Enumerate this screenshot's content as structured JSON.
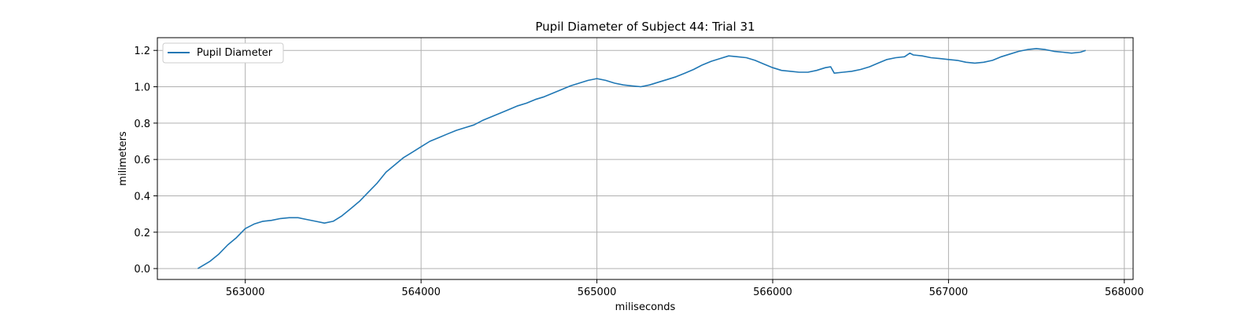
{
  "chart_data": {
    "type": "line",
    "title": "Pupil Diameter of Subject 44: Trial 31",
    "xlabel": "miliseconds",
    "ylabel": "milimeters",
    "xlim": [
      562500,
      568050
    ],
    "ylim": [
      -0.06,
      1.27
    ],
    "xticks": [
      563000,
      564000,
      565000,
      566000,
      567000,
      568000
    ],
    "yticks": [
      0.0,
      0.2,
      0.4,
      0.6,
      0.8,
      1.0,
      1.2
    ],
    "xtick_labels": [
      "563000",
      "564000",
      "565000",
      "566000",
      "567000",
      "568000"
    ],
    "ytick_labels": [
      "0.0",
      "0.2",
      "0.4",
      "0.6",
      "0.8",
      "1.0",
      "1.2"
    ],
    "grid": true,
    "legend_position": "top-left",
    "series": [
      {
        "name": "Pupil Diameter",
        "color": "#1f77b4",
        "x": [
          562730,
          562800,
          562850,
          562900,
          562950,
          563000,
          563050,
          563100,
          563150,
          563200,
          563250,
          563300,
          563350,
          563400,
          563450,
          563500,
          563550,
          563600,
          563650,
          563700,
          563750,
          563800,
          563850,
          563900,
          563950,
          564000,
          564050,
          564100,
          564150,
          564200,
          564250,
          564300,
          564350,
          564400,
          564450,
          564500,
          564550,
          564600,
          564650,
          564700,
          564750,
          564800,
          564850,
          564900,
          564950,
          565000,
          565050,
          565100,
          565150,
          565200,
          565250,
          565300,
          565350,
          565400,
          565450,
          565500,
          565550,
          565600,
          565650,
          565700,
          565750,
          565800,
          565850,
          565900,
          565950,
          566000,
          566050,
          566100,
          566150,
          566200,
          566250,
          566300,
          566330,
          566350,
          566400,
          566450,
          566500,
          566550,
          566600,
          566650,
          566700,
          566750,
          566780,
          566800,
          566850,
          566900,
          566950,
          567000,
          567050,
          567100,
          567150,
          567200,
          567250,
          567300,
          567350,
          567400,
          567450,
          567500,
          567550,
          567600,
          567650,
          567700,
          567750,
          567780
        ],
        "values": [
          0.0,
          0.04,
          0.08,
          0.13,
          0.17,
          0.22,
          0.245,
          0.26,
          0.265,
          0.275,
          0.28,
          0.28,
          0.27,
          0.26,
          0.25,
          0.26,
          0.29,
          0.33,
          0.37,
          0.42,
          0.47,
          0.53,
          0.57,
          0.61,
          0.64,
          0.67,
          0.7,
          0.72,
          0.74,
          0.76,
          0.775,
          0.79,
          0.815,
          0.835,
          0.855,
          0.875,
          0.895,
          0.91,
          0.93,
          0.945,
          0.965,
          0.985,
          1.005,
          1.02,
          1.035,
          1.045,
          1.035,
          1.02,
          1.01,
          1.005,
          1.0,
          1.01,
          1.025,
          1.04,
          1.055,
          1.075,
          1.095,
          1.12,
          1.14,
          1.155,
          1.17,
          1.165,
          1.16,
          1.145,
          1.125,
          1.105,
          1.09,
          1.085,
          1.08,
          1.08,
          1.09,
          1.105,
          1.11,
          1.075,
          1.08,
          1.085,
          1.095,
          1.11,
          1.13,
          1.15,
          1.16,
          1.165,
          1.185,
          1.175,
          1.17,
          1.16,
          1.155,
          1.15,
          1.145,
          1.135,
          1.13,
          1.135,
          1.145,
          1.165,
          1.18,
          1.195,
          1.205,
          1.21,
          1.205,
          1.195,
          1.19,
          1.185,
          1.19,
          1.2
        ]
      }
    ]
  }
}
